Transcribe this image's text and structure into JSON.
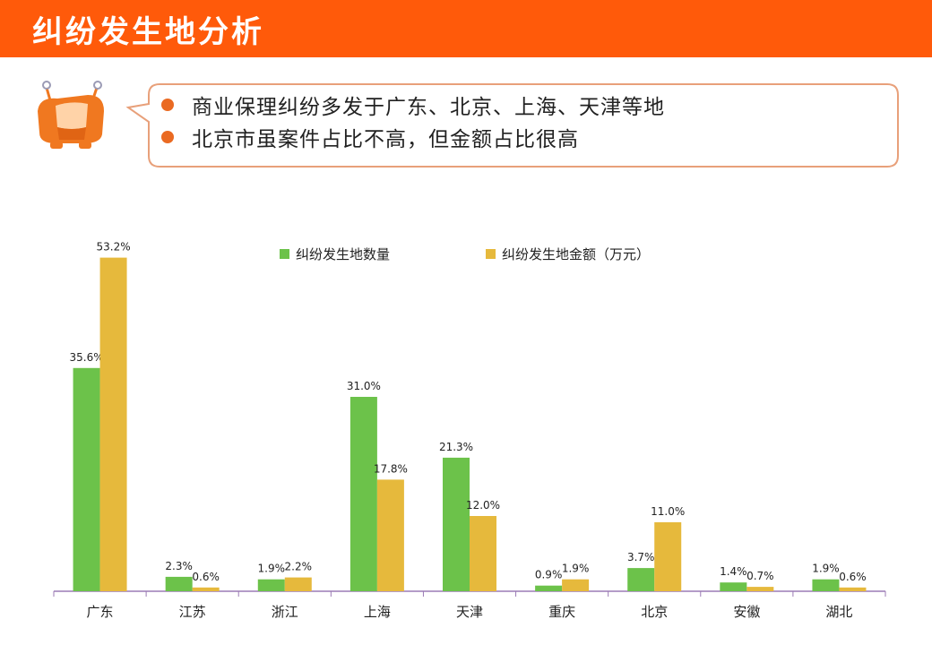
{
  "header": {
    "title": "纠纷发生地分析"
  },
  "callout": {
    "items": [
      "商业保理纠纷多发于广东、北京、上海、天津等地",
      "北京市虽案件占比不高，但金额占比很高"
    ]
  },
  "colors": {
    "header_bg": "#ff5a0a",
    "accent": "#ea6a22",
    "series_count": "#6cc24a",
    "series_amount": "#e6b93c",
    "axis": "#9b7bb5"
  },
  "icons": {
    "mascot": "orange-basket-mascot-icon"
  },
  "chart_data": {
    "type": "bar",
    "title": "",
    "xlabel": "",
    "ylabel": "",
    "ylim": [
      0,
      55
    ],
    "grid": false,
    "legend": "top-center",
    "categories": [
      "广东",
      "江苏",
      "浙江",
      "上海",
      "天津",
      "重庆",
      "北京",
      "安徽",
      "湖北"
    ],
    "series": [
      {
        "name": "纠纷发生地数量",
        "values": [
          35.6,
          2.3,
          1.9,
          31.0,
          21.3,
          0.9,
          3.7,
          1.4,
          1.9
        ],
        "labels": [
          "35.6%",
          "2.3%",
          "1.9%",
          "31.0%",
          "21.3%",
          "0.9%",
          "3.7%",
          "1.4%",
          "1.9%"
        ]
      },
      {
        "name": "纠纷发生地金额（万元）",
        "values": [
          53.2,
          0.6,
          2.2,
          17.8,
          12.0,
          1.9,
          11.0,
          0.7,
          0.6
        ],
        "labels": [
          "53.2%",
          "0.6%",
          "2.2%",
          "17.8%",
          "12.0%",
          "1.9%",
          "11.0%",
          "0.7%",
          "0.6%"
        ]
      }
    ]
  }
}
